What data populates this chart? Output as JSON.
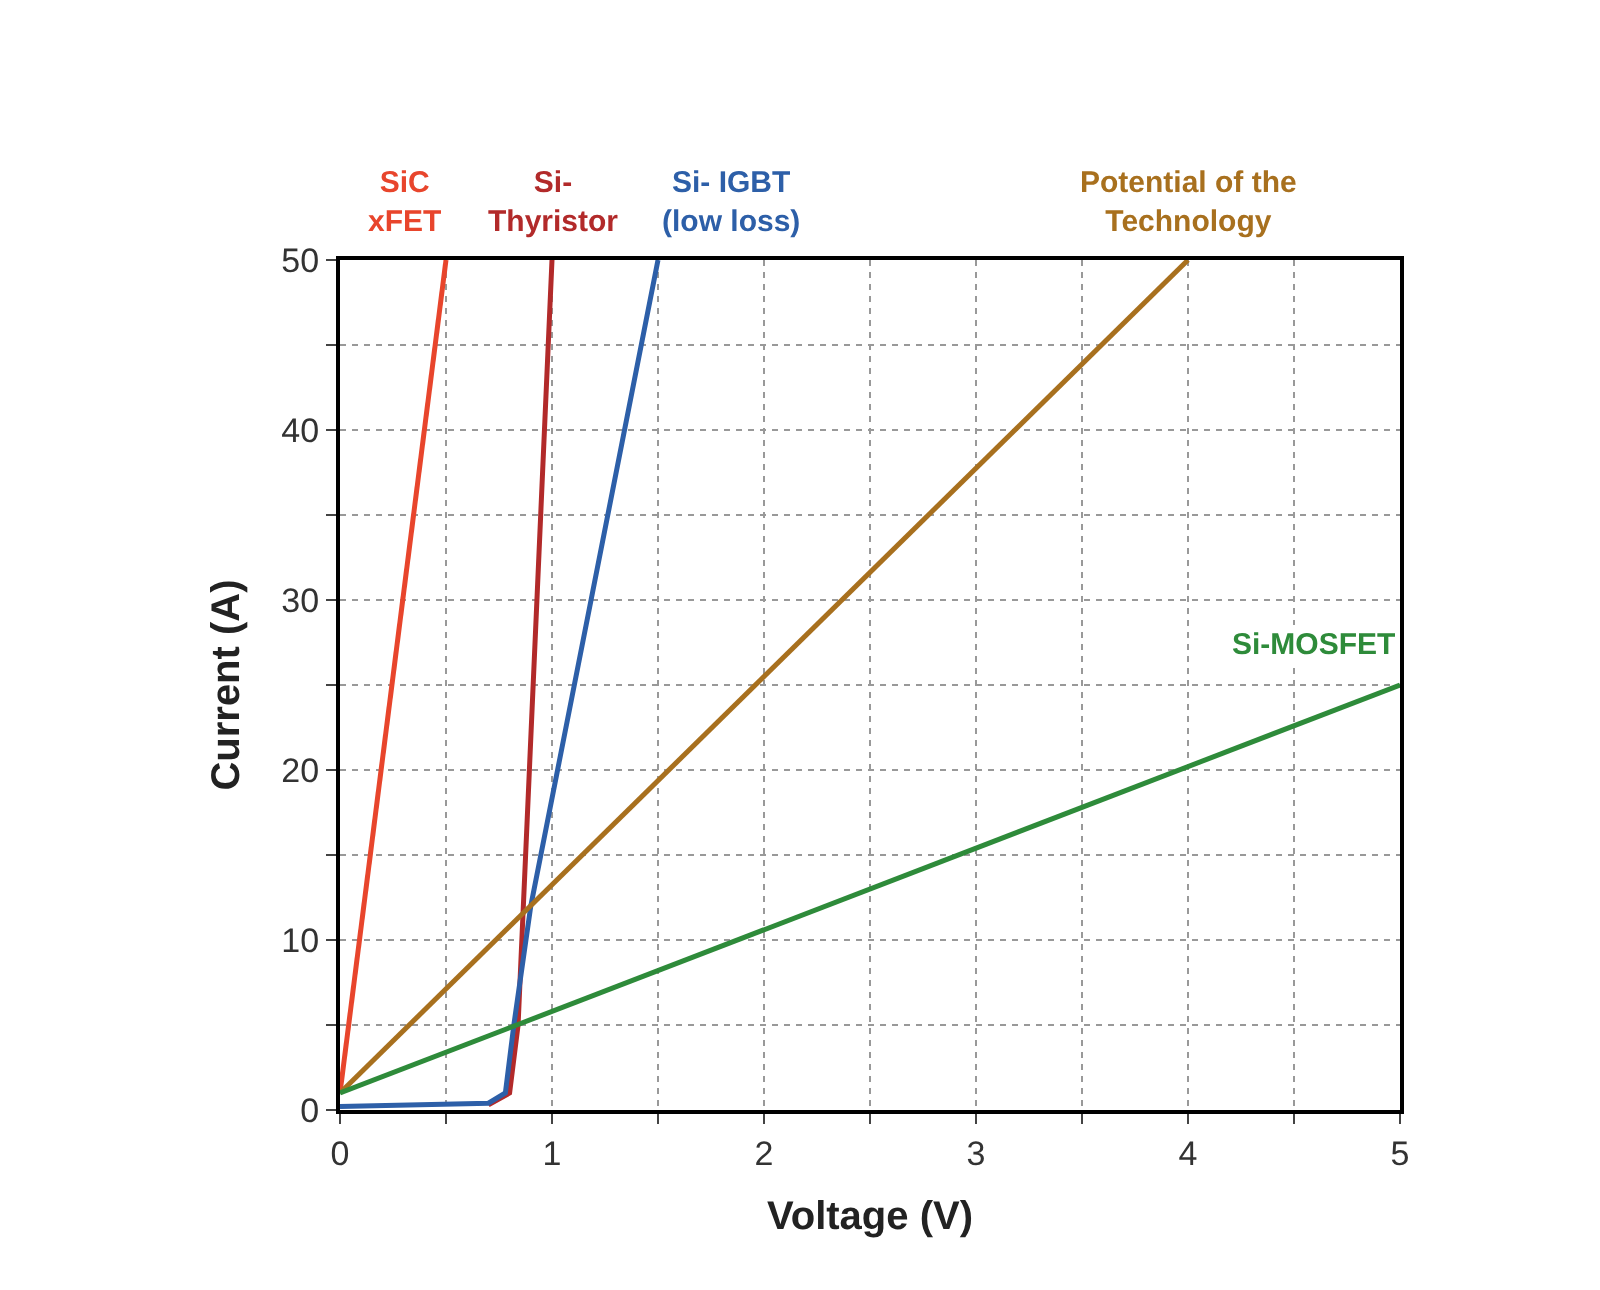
{
  "chart_data": {
    "type": "line",
    "xlabel": "Voltage (V)",
    "ylabel": "Current (A)",
    "xlim": [
      0,
      5
    ],
    "ylim": [
      0,
      50
    ],
    "xticks": [
      0,
      {
        "value": 0.5,
        "label": null
      },
      1,
      {
        "value": 1.5,
        "label": null
      },
      2,
      {
        "value": 2.5,
        "label": null
      },
      3,
      {
        "value": 3.5,
        "label": null
      },
      4,
      {
        "value": 4.5,
        "label": null
      },
      5
    ],
    "yticks": [
      0,
      {
        "value": 5,
        "label": null
      },
      10,
      {
        "value": 15,
        "label": null
      },
      20,
      {
        "value": 25,
        "label": null
      },
      30,
      {
        "value": 35,
        "label": null
      },
      40,
      {
        "value": 45,
        "label": null
      },
      50
    ],
    "grid": true,
    "legend": false,
    "marker": "none",
    "line_style": "solid",
    "series": [
      {
        "name": "SiC\nxFET",
        "color": "#e8452c",
        "x": [
          0,
          0.5
        ],
        "values": [
          1,
          50
        ]
      },
      {
        "name": "Si-\nThyristor",
        "color": "#b22a2a",
        "x": [
          0.7,
          0.8,
          0.84,
          1.0
        ],
        "values": [
          0.3,
          1,
          5,
          50
        ]
      },
      {
        "name": "Si- IGBT\n(low loss)",
        "color": "#2d5fa8",
        "x": [
          0,
          0.7,
          0.78,
          0.82,
          0.9,
          1.5
        ],
        "values": [
          0.2,
          0.4,
          1,
          5,
          12,
          50
        ]
      },
      {
        "name": "Potential of the\nTechnology",
        "color": "#a8701e",
        "x": [
          0,
          4
        ],
        "values": [
          1,
          50
        ]
      },
      {
        "name": "Si-MOSFET",
        "color": "#2e8b3a",
        "x": [
          0,
          5
        ],
        "values": [
          1,
          25
        ]
      }
    ]
  }
}
